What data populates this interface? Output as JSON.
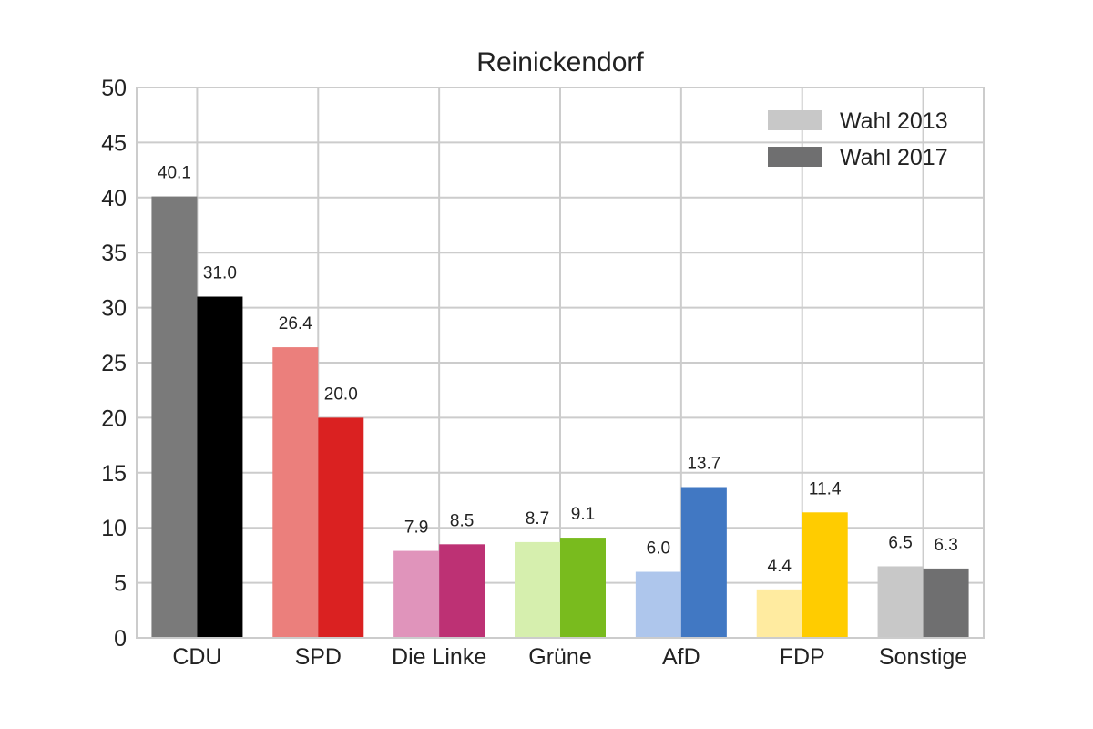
{
  "chart_data": {
    "type": "bar",
    "title": "Reinickendorf",
    "xlabel": "",
    "ylabel": "",
    "ylim": [
      0,
      50
    ],
    "yticks": [
      0,
      5,
      10,
      15,
      20,
      25,
      30,
      35,
      40,
      45,
      50
    ],
    "grid": true,
    "legend_position": "top-right",
    "categories": [
      "CDU",
      "SPD",
      "Die Linke",
      "Grüne",
      "AfD",
      "FDP",
      "Sonstige"
    ],
    "series": [
      {
        "name": "Wahl 2013",
        "legend_color": "#c8c8c8",
        "values": [
          40.1,
          26.4,
          7.9,
          8.7,
          6.0,
          4.4,
          6.5
        ],
        "labels": [
          "40.1",
          "26.4",
          "7.9",
          "8.7",
          "6.0",
          "4.4",
          "6.5"
        ],
        "colors": [
          "#7a7a7a",
          "#eb7f7c",
          "#e094bb",
          "#d6efae",
          "#aec6ec",
          "#ffeba0",
          "#c8c8c8"
        ]
      },
      {
        "name": "Wahl 2017",
        "legend_color": "#6f6f70",
        "values": [
          31.0,
          20.0,
          8.5,
          9.1,
          13.7,
          11.4,
          6.3
        ],
        "labels": [
          "31.0",
          "20.0",
          "8.5",
          "9.1",
          "13.7",
          "11.4",
          "6.3"
        ],
        "colors": [
          "#000000",
          "#da2121",
          "#bd3174",
          "#79bb1e",
          "#4178c3",
          "#ffcc00",
          "#6f6f70"
        ]
      }
    ]
  }
}
